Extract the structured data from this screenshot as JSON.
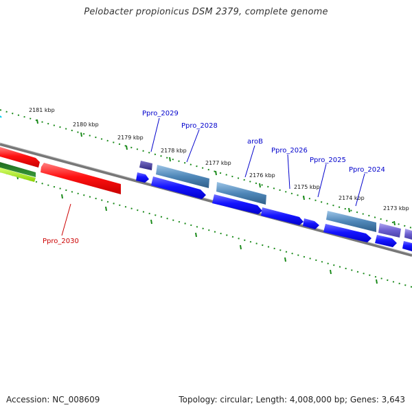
{
  "title": "Pelobacter propionicus DSM 2379, complete genome",
  "footer": {
    "accession": "Accession: NC_008609",
    "summary": "Topology: circular; Length: 4,008,000 bp; Genes: 3,643"
  },
  "colors": {
    "backbone": "#8a8a8a",
    "tick": "#1a8a1a",
    "gene_label_forward": "#0000cc",
    "gene_label_reverse": "#cc0000",
    "kbp_label": "#111111"
  },
  "kbp_ticks": [
    {
      "label": "2181 kbp"
    },
    {
      "label": "2180 kbp"
    },
    {
      "label": "2179 kbp"
    },
    {
      "label": "2178 kbp"
    },
    {
      "label": "2177 kbp"
    },
    {
      "label": "2176 kbp"
    },
    {
      "label": "2175 kbp"
    },
    {
      "label": "2174 kbp"
    },
    {
      "label": "2173 kbp"
    }
  ],
  "gene_labels": [
    {
      "name": "Ppro_2029",
      "strand": "forward"
    },
    {
      "name": "Ppro_2028",
      "strand": "forward"
    },
    {
      "name": "aroB",
      "strand": "forward"
    },
    {
      "name": "Ppro_2026",
      "strand": "forward"
    },
    {
      "name": "Ppro_2025",
      "strand": "forward"
    },
    {
      "name": "Ppro_2024",
      "strand": "forward"
    },
    {
      "name": "Ppro_2030",
      "strand": "reverse"
    }
  ]
}
